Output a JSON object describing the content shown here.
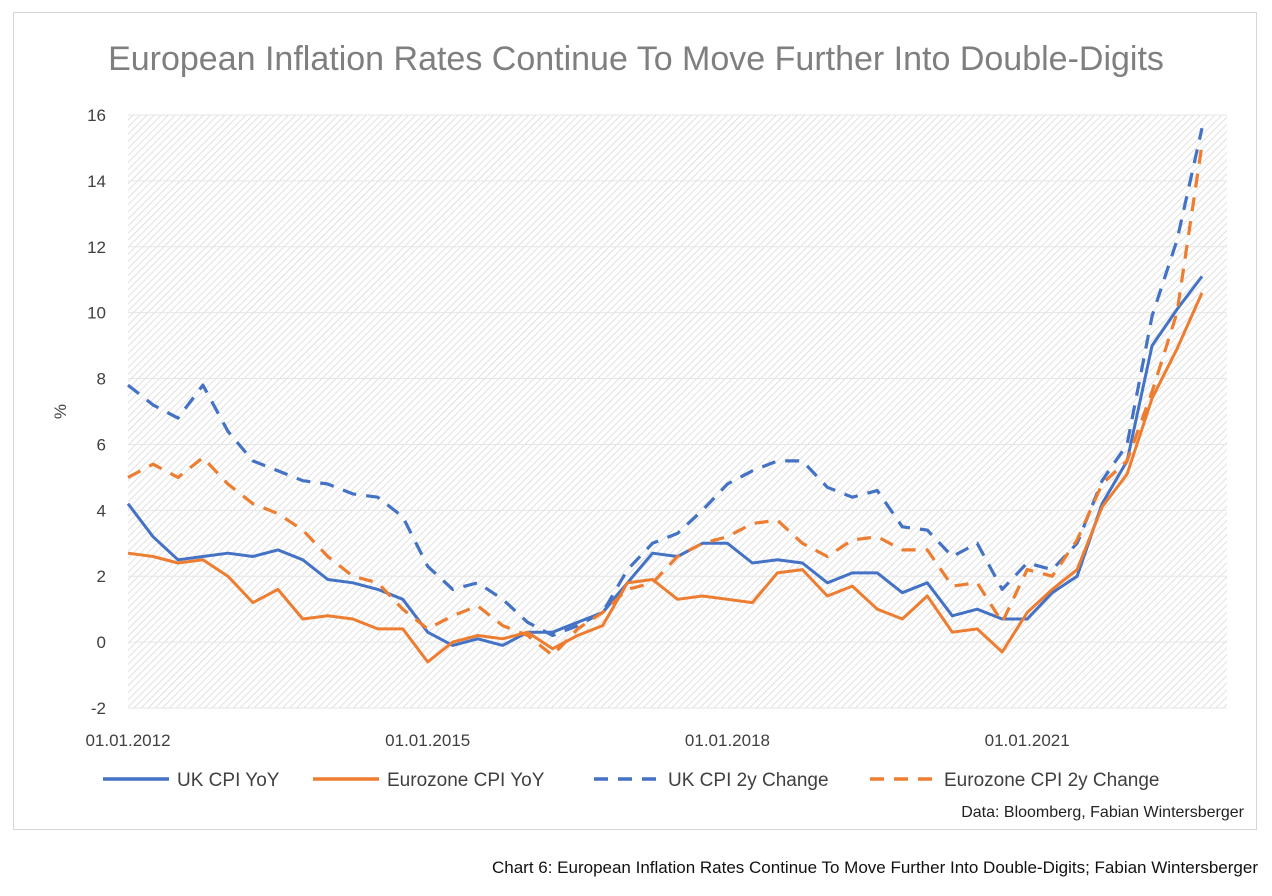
{
  "chart_data": {
    "type": "line",
    "title": "European Inflation Rates Continue To Move Further Into Double-Digits",
    "ylabel": "%",
    "xlabel": "",
    "ylim": [
      -2,
      16
    ],
    "yticks": [
      -2,
      0,
      2,
      4,
      6,
      8,
      10,
      12,
      14,
      16
    ],
    "xlim": [
      "2012-01-01",
      "2023-01-01"
    ],
    "xticks": [
      "01.01.2012",
      "01.01.2015",
      "01.01.2018",
      "01.01.2021"
    ],
    "legend_position": "bottom",
    "grid": true,
    "background": "hatched",
    "series": [
      {
        "name": "UK CPI YoY",
        "color": "#4472c4",
        "style": "solid",
        "x": [
          "2012-01",
          "2012-04",
          "2012-07",
          "2012-10",
          "2013-01",
          "2013-04",
          "2013-07",
          "2013-10",
          "2014-01",
          "2014-04",
          "2014-07",
          "2014-10",
          "2015-01",
          "2015-04",
          "2015-07",
          "2015-10",
          "2016-01",
          "2016-04",
          "2016-07",
          "2016-10",
          "2017-01",
          "2017-04",
          "2017-07",
          "2017-10",
          "2018-01",
          "2018-04",
          "2018-07",
          "2018-10",
          "2019-01",
          "2019-04",
          "2019-07",
          "2019-10",
          "2020-01",
          "2020-04",
          "2020-07",
          "2020-10",
          "2021-01",
          "2021-04",
          "2021-07",
          "2021-10",
          "2022-01",
          "2022-04",
          "2022-07",
          "2022-10"
        ],
        "y": [
          4.2,
          3.2,
          2.5,
          2.6,
          2.7,
          2.6,
          2.8,
          2.5,
          1.9,
          1.8,
          1.6,
          1.3,
          0.3,
          -0.1,
          0.1,
          -0.1,
          0.3,
          0.3,
          0.6,
          0.9,
          1.8,
          2.7,
          2.6,
          3.0,
          3.0,
          2.4,
          2.5,
          2.4,
          1.8,
          2.1,
          2.1,
          1.5,
          1.8,
          0.8,
          1.0,
          0.7,
          0.7,
          1.5,
          2.0,
          4.2,
          5.5,
          9.0,
          10.1,
          11.1
        ]
      },
      {
        "name": "Eurozone CPI YoY",
        "color": "#ed7d31",
        "style": "solid",
        "x": [
          "2012-01",
          "2012-04",
          "2012-07",
          "2012-10",
          "2013-01",
          "2013-04",
          "2013-07",
          "2013-10",
          "2014-01",
          "2014-04",
          "2014-07",
          "2014-10",
          "2015-01",
          "2015-04",
          "2015-07",
          "2015-10",
          "2016-01",
          "2016-04",
          "2016-07",
          "2016-10",
          "2017-01",
          "2017-04",
          "2017-07",
          "2017-10",
          "2018-01",
          "2018-04",
          "2018-07",
          "2018-10",
          "2019-01",
          "2019-04",
          "2019-07",
          "2019-10",
          "2020-01",
          "2020-04",
          "2020-07",
          "2020-10",
          "2021-01",
          "2021-04",
          "2021-07",
          "2021-10",
          "2022-01",
          "2022-04",
          "2022-07",
          "2022-10"
        ],
        "y": [
          2.7,
          2.6,
          2.4,
          2.5,
          2.0,
          1.2,
          1.6,
          0.7,
          0.8,
          0.7,
          0.4,
          0.4,
          -0.6,
          0.0,
          0.2,
          0.1,
          0.3,
          -0.2,
          0.2,
          0.5,
          1.8,
          1.9,
          1.3,
          1.4,
          1.3,
          1.2,
          2.1,
          2.2,
          1.4,
          1.7,
          1.0,
          0.7,
          1.4,
          0.3,
          0.4,
          -0.3,
          0.9,
          1.6,
          2.2,
          4.1,
          5.1,
          7.4,
          8.9,
          10.6
        ]
      },
      {
        "name": "UK CPI 2y Change",
        "color": "#4472c4",
        "style": "dashed",
        "x": [
          "2012-01",
          "2012-04",
          "2012-07",
          "2012-10",
          "2013-01",
          "2013-04",
          "2013-07",
          "2013-10",
          "2014-01",
          "2014-04",
          "2014-07",
          "2014-10",
          "2015-01",
          "2015-04",
          "2015-07",
          "2015-10",
          "2016-01",
          "2016-04",
          "2016-07",
          "2016-10",
          "2017-01",
          "2017-04",
          "2017-07",
          "2017-10",
          "2018-01",
          "2018-04",
          "2018-07",
          "2018-10",
          "2019-01",
          "2019-04",
          "2019-07",
          "2019-10",
          "2020-01",
          "2020-04",
          "2020-07",
          "2020-10",
          "2021-01",
          "2021-04",
          "2021-07",
          "2021-10",
          "2022-01",
          "2022-04",
          "2022-07",
          "2022-10"
        ],
        "y": [
          7.8,
          7.2,
          6.8,
          7.8,
          6.4,
          5.5,
          5.2,
          4.9,
          4.8,
          4.5,
          4.4,
          3.8,
          2.3,
          1.6,
          1.8,
          1.3,
          0.6,
          0.2,
          0.5,
          0.9,
          2.2,
          3.0,
          3.3,
          4.0,
          4.8,
          5.2,
          5.5,
          5.5,
          4.7,
          4.4,
          4.6,
          3.5,
          3.4,
          2.6,
          3.0,
          1.6,
          2.4,
          2.2,
          3.0,
          4.9,
          6.0,
          9.9,
          12.2,
          15.6
        ]
      },
      {
        "name": "Eurozone CPI 2y Change",
        "color": "#ed7d31",
        "style": "dashed",
        "x": [
          "2012-01",
          "2012-04",
          "2012-07",
          "2012-10",
          "2013-01",
          "2013-04",
          "2013-07",
          "2013-10",
          "2014-01",
          "2014-04",
          "2014-07",
          "2014-10",
          "2015-01",
          "2015-04",
          "2015-07",
          "2015-10",
          "2016-01",
          "2016-04",
          "2016-07",
          "2016-10",
          "2017-01",
          "2017-04",
          "2017-07",
          "2017-10",
          "2018-01",
          "2018-04",
          "2018-07",
          "2018-10",
          "2019-01",
          "2019-04",
          "2019-07",
          "2019-10",
          "2020-01",
          "2020-04",
          "2020-07",
          "2020-10",
          "2021-01",
          "2021-04",
          "2021-07",
          "2021-10",
          "2022-01",
          "2022-04",
          "2022-07",
          "2022-10"
        ],
        "y": [
          5.0,
          5.4,
          5.0,
          5.6,
          4.8,
          4.2,
          3.9,
          3.4,
          2.6,
          2.0,
          1.8,
          1.0,
          0.4,
          0.8,
          1.1,
          0.5,
          0.2,
          -0.4,
          0.4,
          0.9,
          1.6,
          1.8,
          2.6,
          3.0,
          3.2,
          3.6,
          3.7,
          3.0,
          2.6,
          3.1,
          3.2,
          2.8,
          2.8,
          1.7,
          1.8,
          0.6,
          2.2,
          2.0,
          3.1,
          4.8,
          5.5,
          7.6,
          10.0,
          15.1
        ]
      }
    ]
  },
  "source_note": "Data: Bloomberg, Fabian Wintersberger",
  "caption": "Chart 6: European Inflation Rates Continue To Move Further Into Double-Digits; Fabian Wintersberger"
}
